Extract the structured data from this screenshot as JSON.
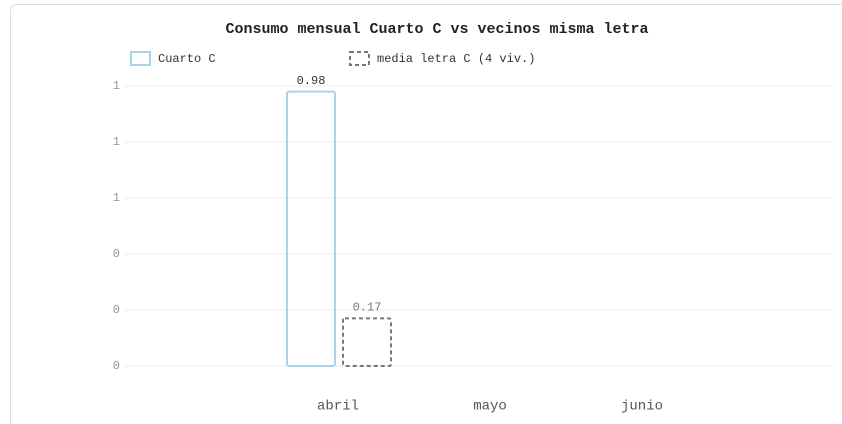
{
  "chart_data": {
    "type": "bar",
    "title": "Consumo mensual Cuarto C vs vecinos misma letra",
    "categories": [
      "abril",
      "mayo",
      "junio"
    ],
    "series": [
      {
        "name": "Cuarto C",
        "color": "#a8d4ea",
        "dash": false,
        "values": [
          0.98,
          null,
          null
        ]
      },
      {
        "name": "media letra C (4 viv.)",
        "color": "#777777",
        "dash": true,
        "values": [
          0.17,
          null,
          null
        ]
      }
    ],
    "ylim": [
      0,
      1
    ],
    "yticks": [
      0,
      {
        "value": 0.2,
        "label": "0"
      },
      {
        "value": 0.4,
        "label": "0"
      },
      {
        "value": 0.6,
        "label": "1"
      },
      {
        "value": 0.8,
        "label": "1"
      },
      {
        "value": 1,
        "label": "1"
      }
    ],
    "grid": true
  }
}
